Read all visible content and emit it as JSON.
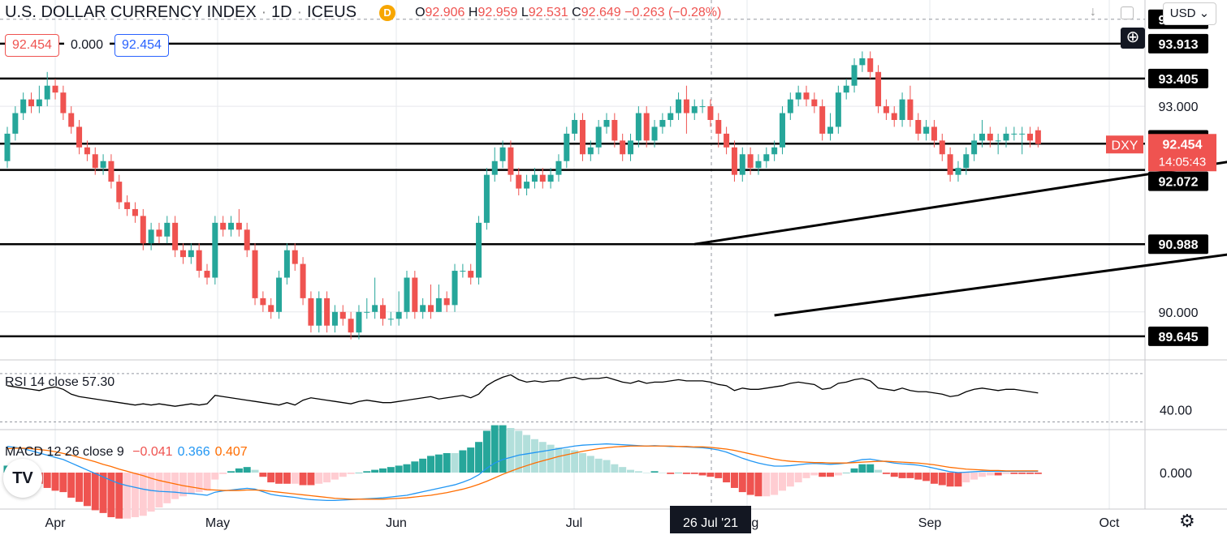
{
  "header": {
    "symbol": "U.S. DOLLAR CURRENCY INDEX",
    "interval": "1D",
    "exchange": "ICEUS",
    "badge": "D",
    "open_label": "O",
    "open": "92.906",
    "high_label": "H",
    "high": "92.959",
    "low_label": "L",
    "low": "92.531",
    "close_label": "C",
    "close": "92.649",
    "change": "−0.263 (−0.28%)"
  },
  "price_boxes": {
    "bid": "92.454",
    "spread": "0.000",
    "ask": "92.454"
  },
  "toolbar": {
    "currency": "USD",
    "download_icon": "arrow-down-icon",
    "fullscreen_icon": "fullscreen-icon",
    "add_icon": "plus-circle-icon",
    "settings_icon": "gear-icon",
    "logo": "tradingview-logo"
  },
  "colors": {
    "up": "#26a69a",
    "down": "#ef5350",
    "level": "#000000",
    "rsi": "#000000",
    "macd": "#2196f3",
    "signal": "#ff6d00",
    "last_price": "#ef5350"
  },
  "chart_data": [
    {
      "type": "candlestick",
      "title": "U.S. DOLLAR CURRENCY INDEX · 1D · ICEUS",
      "ticker": "DXY",
      "ylim": [
        89.3,
        94.55
      ],
      "x_ticks": [
        "Apr",
        "May",
        "Jun",
        "Jul",
        "Aug",
        "Sep",
        "Oct"
      ],
      "y_ticks": [
        90.0,
        93.0
      ],
      "highlighted_date": "26 Jul '21",
      "last_price": {
        "value": "92.454",
        "countdown": "14:05:43",
        "label": "DXY"
      },
      "horizontal_levels": [
        "94.269",
        "93.913",
        "93.405",
        "92.510",
        "92.072",
        "90.988",
        "89.645"
      ],
      "plotted_levels": [
        93.913,
        93.405,
        92.454,
        92.072,
        90.988,
        89.645
      ],
      "channel_upper": [
        [
          86,
          90.988
        ],
        [
          284,
          94.55
        ]
      ],
      "channel_lower": [
        [
          96,
          89.95
        ],
        [
          323,
          93.5
        ]
      ],
      "candles": [
        [
          92.2,
          92.6,
          92.7,
          92.1
        ],
        [
          92.6,
          92.9,
          93.0,
          92.5
        ],
        [
          92.9,
          93.1,
          93.2,
          92.8
        ],
        [
          93.1,
          93.0,
          93.2,
          92.9
        ],
        [
          93.0,
          93.1,
          93.3,
          92.9
        ],
        [
          93.1,
          93.3,
          93.5,
          93.0
        ],
        [
          93.3,
          93.2,
          93.4,
          93.1
        ],
        [
          93.2,
          92.9,
          93.3,
          92.8
        ],
        [
          92.9,
          92.7,
          93.0,
          92.6
        ],
        [
          92.7,
          92.4,
          92.8,
          92.3
        ],
        [
          92.4,
          92.3,
          92.5,
          92.2
        ],
        [
          92.3,
          92.1,
          92.4,
          92.0
        ],
        [
          92.1,
          92.2,
          92.3,
          92.0
        ],
        [
          92.2,
          91.9,
          92.3,
          91.8
        ],
        [
          91.9,
          91.6,
          92.0,
          91.5
        ],
        [
          91.6,
          91.5,
          91.7,
          91.4
        ],
        [
          91.5,
          91.4,
          91.6,
          91.3
        ],
        [
          91.4,
          91.0,
          91.5,
          90.9
        ],
        [
          91.0,
          91.2,
          91.3,
          90.9
        ],
        [
          91.2,
          91.1,
          91.3,
          91.0
        ],
        [
          91.1,
          91.3,
          91.4,
          91.0
        ],
        [
          91.3,
          90.9,
          91.4,
          90.8
        ],
        [
          90.9,
          90.8,
          91.0,
          90.7
        ],
        [
          90.8,
          90.9,
          91.0,
          90.7
        ],
        [
          90.9,
          90.6,
          91.0,
          90.5
        ],
        [
          90.6,
          90.5,
          90.7,
          90.4
        ],
        [
          90.5,
          91.3,
          91.4,
          90.4
        ],
        [
          91.3,
          91.2,
          91.4,
          91.1
        ],
        [
          91.2,
          91.3,
          91.4,
          91.1
        ],
        [
          91.3,
          91.2,
          91.5,
          91.1
        ],
        [
          91.2,
          90.9,
          91.3,
          90.8
        ],
        [
          90.9,
          90.2,
          91.0,
          90.1
        ],
        [
          90.2,
          90.1,
          90.3,
          90.0
        ],
        [
          90.1,
          90.0,
          90.2,
          89.9
        ],
        [
          90.0,
          90.5,
          90.6,
          89.9
        ],
        [
          90.5,
          90.9,
          91.0,
          90.4
        ],
        [
          90.9,
          90.7,
          91.0,
          90.6
        ],
        [
          90.7,
          90.2,
          90.8,
          90.1
        ],
        [
          90.2,
          89.8,
          90.3,
          89.7
        ],
        [
          89.8,
          90.2,
          90.3,
          89.7
        ],
        [
          90.2,
          89.8,
          90.3,
          89.7
        ],
        [
          89.8,
          90.0,
          90.1,
          89.7
        ],
        [
          90.0,
          89.9,
          90.1,
          89.8
        ],
        [
          89.9,
          89.7,
          90.0,
          89.6
        ],
        [
          89.7,
          90.0,
          90.1,
          89.6
        ],
        [
          90.0,
          90.0,
          90.2,
          89.9
        ],
        [
          90.0,
          90.1,
          90.5,
          89.9
        ],
        [
          90.1,
          89.9,
          90.2,
          89.8
        ],
        [
          89.9,
          89.9,
          90.0,
          89.8
        ],
        [
          89.9,
          90.0,
          90.3,
          89.8
        ],
        [
          90.0,
          90.5,
          90.6,
          89.9
        ],
        [
          90.5,
          90.0,
          90.6,
          89.9
        ],
        [
          90.0,
          90.1,
          90.2,
          89.9
        ],
        [
          90.1,
          90.0,
          90.4,
          89.9
        ],
        [
          90.0,
          90.2,
          90.4,
          90.0
        ],
        [
          90.2,
          90.1,
          90.3,
          90.0
        ],
        [
          90.1,
          90.6,
          90.7,
          90.0
        ],
        [
          90.6,
          90.6,
          90.7,
          90.5
        ],
        [
          90.6,
          90.5,
          90.7,
          90.4
        ],
        [
          90.5,
          91.3,
          91.4,
          90.4
        ],
        [
          91.3,
          92.0,
          92.1,
          91.2
        ],
        [
          92.0,
          92.2,
          92.4,
          91.9
        ],
        [
          92.2,
          92.4,
          92.5,
          92.1
        ],
        [
          92.4,
          92.0,
          92.5,
          91.9
        ],
        [
          92.0,
          91.8,
          92.1,
          91.7
        ],
        [
          91.8,
          91.9,
          92.0,
          91.7
        ],
        [
          91.9,
          92.0,
          92.1,
          91.8
        ],
        [
          92.0,
          91.9,
          92.1,
          91.8
        ],
        [
          91.9,
          92.0,
          92.1,
          91.8
        ],
        [
          92.0,
          92.2,
          92.3,
          91.9
        ],
        [
          92.2,
          92.6,
          92.7,
          92.1
        ],
        [
          92.6,
          92.8,
          92.9,
          92.5
        ],
        [
          92.8,
          92.3,
          92.9,
          92.2
        ],
        [
          92.3,
          92.4,
          92.5,
          92.2
        ],
        [
          92.4,
          92.7,
          92.8,
          92.3
        ],
        [
          92.7,
          92.8,
          92.9,
          92.6
        ],
        [
          92.8,
          92.5,
          92.9,
          92.4
        ],
        [
          92.5,
          92.3,
          92.6,
          92.2
        ],
        [
          92.3,
          92.5,
          92.6,
          92.2
        ],
        [
          92.5,
          92.9,
          93.0,
          92.4
        ],
        [
          92.9,
          92.5,
          93.0,
          92.4
        ],
        [
          92.5,
          92.7,
          92.8,
          92.4
        ],
        [
          92.7,
          92.8,
          92.9,
          92.6
        ],
        [
          92.8,
          92.9,
          93.0,
          92.7
        ],
        [
          92.9,
          93.1,
          93.2,
          92.8
        ],
        [
          93.1,
          92.9,
          93.3,
          92.6
        ],
        [
          92.9,
          93.0,
          93.1,
          92.8
        ],
        [
          93.0,
          93.0,
          93.1,
          92.9
        ],
        [
          93.0,
          92.8,
          93.1,
          92.7
        ],
        [
          92.8,
          92.6,
          92.9,
          92.4
        ],
        [
          92.6,
          92.4,
          92.7,
          92.3
        ],
        [
          92.4,
          92.0,
          92.5,
          91.9
        ],
        [
          92.0,
          92.3,
          92.4,
          91.9
        ],
        [
          92.3,
          92.1,
          92.4,
          92.0
        ],
        [
          92.1,
          92.2,
          92.3,
          92.0
        ],
        [
          92.2,
          92.3,
          92.4,
          92.1
        ],
        [
          92.3,
          92.4,
          92.5,
          92.2
        ],
        [
          92.4,
          92.9,
          93.0,
          92.3
        ],
        [
          92.9,
          93.1,
          93.2,
          92.8
        ],
        [
          93.1,
          93.2,
          93.3,
          93.0
        ],
        [
          93.2,
          93.1,
          93.3,
          93.0
        ],
        [
          93.1,
          93.0,
          93.2,
          92.9
        ],
        [
          93.0,
          92.6,
          93.1,
          92.5
        ],
        [
          92.6,
          92.7,
          92.9,
          92.5
        ],
        [
          92.7,
          93.2,
          93.3,
          92.6
        ],
        [
          93.2,
          93.3,
          93.4,
          93.1
        ],
        [
          93.3,
          93.6,
          93.7,
          93.2
        ],
        [
          93.6,
          93.7,
          93.8,
          93.5
        ],
        [
          93.7,
          93.5,
          93.8,
          93.4
        ],
        [
          93.5,
          93.0,
          93.6,
          92.9
        ],
        [
          93.0,
          92.9,
          93.1,
          92.8
        ],
        [
          92.9,
          92.8,
          93.0,
          92.7
        ],
        [
          92.8,
          93.1,
          93.2,
          92.7
        ],
        [
          93.1,
          92.8,
          93.3,
          92.7
        ],
        [
          92.8,
          92.6,
          92.9,
          92.5
        ],
        [
          92.6,
          92.7,
          92.8,
          92.5
        ],
        [
          92.7,
          92.5,
          92.8,
          92.4
        ],
        [
          92.5,
          92.3,
          92.6,
          92.2
        ],
        [
          92.3,
          92.0,
          92.4,
          91.9
        ],
        [
          92.0,
          92.1,
          92.2,
          91.9
        ],
        [
          92.1,
          92.3,
          92.4,
          92.0
        ],
        [
          92.3,
          92.5,
          92.6,
          92.2
        ],
        [
          92.5,
          92.6,
          92.8,
          92.4
        ],
        [
          92.6,
          92.5,
          92.7,
          92.4
        ],
        [
          92.5,
          92.5,
          92.6,
          92.3
        ],
        [
          92.5,
          92.6,
          92.7,
          92.4
        ],
        [
          92.6,
          92.6,
          92.7,
          92.5
        ],
        [
          92.6,
          92.6,
          92.7,
          92.3
        ],
        [
          92.6,
          92.5,
          92.7,
          92.4
        ],
        [
          92.65,
          92.45,
          92.7,
          92.4
        ]
      ]
    },
    {
      "type": "line",
      "title": "RSI 14 close",
      "value": "57.30",
      "y_ticks": [
        "40.00"
      ],
      "ylim": [
        25,
        80
      ],
      "reference_lines": [
        70,
        30
      ],
      "values": [
        60,
        59,
        58,
        57,
        56,
        58,
        59,
        57,
        53,
        51,
        50,
        49,
        48,
        47,
        46,
        45,
        44,
        45,
        44,
        45,
        44,
        43,
        44,
        45,
        44,
        45,
        52,
        51,
        50,
        49,
        48,
        47,
        46,
        45,
        44,
        46,
        44,
        48,
        50,
        49,
        48,
        47,
        46,
        45,
        47,
        48,
        47,
        46,
        46,
        47,
        48,
        49,
        50,
        51,
        49,
        50,
        51,
        52,
        50,
        53,
        60,
        64,
        67,
        69,
        65,
        63,
        64,
        63,
        64,
        64,
        66,
        67,
        65,
        66,
        66,
        67,
        65,
        63,
        62,
        64,
        62,
        63,
        63,
        64,
        65,
        64,
        64,
        64,
        63,
        61,
        60,
        56,
        58,
        57,
        57,
        58,
        59,
        60,
        62,
        63,
        62,
        61,
        57,
        58,
        62,
        63,
        65,
        66,
        64,
        58,
        57,
        56,
        58,
        56,
        55,
        55,
        54,
        53,
        51,
        52,
        55,
        57,
        58,
        57,
        56,
        57,
        57,
        56,
        55,
        54
      ]
    },
    {
      "type": "bar+line",
      "title": "MACD 12 26 close 9",
      "values_label": [
        "−0.041",
        "0.366",
        "0.407"
      ],
      "y_ticks": [
        "0.000"
      ],
      "ylim": [
        -0.8,
        0.95
      ],
      "macd": [
        0.6,
        0.58,
        0.55,
        0.5,
        0.45,
        0.4,
        0.35,
        0.3,
        0.22,
        0.14,
        0.06,
        -0.02,
        -0.1,
        -0.18,
        -0.25,
        -0.3,
        -0.34,
        -0.38,
        -0.41,
        -0.43,
        -0.44,
        -0.45,
        -0.47,
        -0.48,
        -0.5,
        -0.52,
        -0.45,
        -0.42,
        -0.4,
        -0.38,
        -0.36,
        -0.38,
        -0.44,
        -0.5,
        -0.53,
        -0.55,
        -0.57,
        -0.6,
        -0.62,
        -0.63,
        -0.64,
        -0.64,
        -0.63,
        -0.62,
        -0.61,
        -0.6,
        -0.59,
        -0.58,
        -0.56,
        -0.54,
        -0.52,
        -0.48,
        -0.44,
        -0.4,
        -0.36,
        -0.32,
        -0.28,
        -0.22,
        -0.15,
        -0.05,
        0.1,
        0.22,
        0.3,
        0.35,
        0.4,
        0.43,
        0.46,
        0.49,
        0.52,
        0.55,
        0.58,
        0.61,
        0.63,
        0.64,
        0.65,
        0.66,
        0.65,
        0.64,
        0.63,
        0.62,
        0.61,
        0.62,
        0.61,
        0.6,
        0.6,
        0.59,
        0.58,
        0.57,
        0.55,
        0.52,
        0.47,
        0.4,
        0.33,
        0.27,
        0.22,
        0.18,
        0.15,
        0.15,
        0.16,
        0.18,
        0.2,
        0.21,
        0.2,
        0.19,
        0.2,
        0.22,
        0.26,
        0.3,
        0.31,
        0.28,
        0.25,
        0.22,
        0.2,
        0.19,
        0.17,
        0.14,
        0.1,
        0.06,
        0.02,
        0.0,
        0.01,
        0.02,
        0.03,
        0.03,
        0.03,
        0.03,
        0.03,
        0.03,
        0.03,
        0.03
      ],
      "signal": [
        0.55,
        0.56,
        0.56,
        0.55,
        0.53,
        0.51,
        0.48,
        0.44,
        0.4,
        0.35,
        0.3,
        0.25,
        0.19,
        0.14,
        0.08,
        0.03,
        -0.02,
        -0.07,
        -0.13,
        -0.18,
        -0.22,
        -0.26,
        -0.3,
        -0.33,
        -0.36,
        -0.39,
        -0.4,
        -0.41,
        -0.41,
        -0.41,
        -0.4,
        -0.4,
        -0.41,
        -0.43,
        -0.45,
        -0.47,
        -0.49,
        -0.51,
        -0.53,
        -0.55,
        -0.57,
        -0.59,
        -0.6,
        -0.61,
        -0.61,
        -0.61,
        -0.61,
        -0.61,
        -0.6,
        -0.59,
        -0.58,
        -0.56,
        -0.54,
        -0.52,
        -0.49,
        -0.46,
        -0.42,
        -0.38,
        -0.33,
        -0.27,
        -0.2,
        -0.12,
        -0.04,
        0.03,
        0.1,
        0.16,
        0.22,
        0.27,
        0.32,
        0.37,
        0.41,
        0.45,
        0.49,
        0.52,
        0.55,
        0.57,
        0.59,
        0.6,
        0.61,
        0.61,
        0.61,
        0.61,
        0.61,
        0.61,
        0.6,
        0.6,
        0.59,
        0.59,
        0.58,
        0.56,
        0.54,
        0.51,
        0.47,
        0.43,
        0.39,
        0.35,
        0.31,
        0.28,
        0.26,
        0.25,
        0.24,
        0.23,
        0.23,
        0.22,
        0.22,
        0.22,
        0.23,
        0.24,
        0.25,
        0.26,
        0.26,
        0.25,
        0.24,
        0.23,
        0.22,
        0.2,
        0.18,
        0.15,
        0.12,
        0.1,
        0.08,
        0.07,
        0.06,
        0.05,
        0.05,
        0.04,
        0.04,
        0.04,
        0.04,
        0.04
      ]
    }
  ]
}
